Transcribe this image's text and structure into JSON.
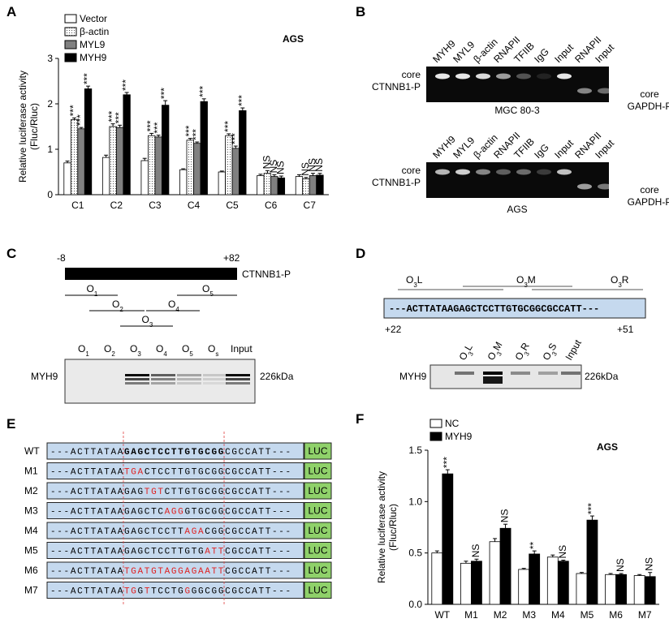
{
  "panel_labels": [
    "A",
    "B",
    "C",
    "D",
    "E",
    "F"
  ],
  "chart_data": [
    {
      "type": "bar",
      "title": "AGS",
      "ylabel": [
        "Relative luciferase activity",
        "(Fluc/Rluc)"
      ],
      "categories": [
        "C1",
        "C2",
        "C3",
        "C4",
        "C5",
        "C6",
        "C7"
      ],
      "series": [
        {
          "name": "Vector",
          "color": "#ffffff",
          "values": [
            0.7,
            0.82,
            0.75,
            0.55,
            0.5,
            0.42,
            0.4
          ],
          "errors": [
            0.04,
            0.05,
            0.05,
            0.02,
            0.02,
            0.03,
            0.04
          ]
        },
        {
          "name": "β-actin",
          "color": "#ffffff",
          "pattern": "dots",
          "values": [
            1.65,
            1.5,
            1.3,
            1.2,
            1.3,
            0.47,
            0.35
          ],
          "errors": [
            0.04,
            0.06,
            0.05,
            0.04,
            0.04,
            0.06,
            0.03
          ],
          "significance": [
            "***",
            "***",
            "***",
            "***",
            "***",
            "NS",
            "NS"
          ]
        },
        {
          "name": "MYL9",
          "color": "#808080",
          "values": [
            1.45,
            1.48,
            1.27,
            1.13,
            1.02,
            0.4,
            0.42
          ],
          "errors": [
            0.03,
            0.05,
            0.04,
            0.03,
            0.05,
            0.04,
            0.05
          ],
          "significance": [
            "***",
            "***",
            "***",
            "***",
            "***",
            "NS",
            "NS"
          ]
        },
        {
          "name": "MYH9",
          "color": "#000000",
          "values": [
            2.33,
            2.2,
            1.97,
            2.05,
            1.85,
            0.37,
            0.43
          ],
          "errors": [
            0.06,
            0.05,
            0.1,
            0.06,
            0.06,
            0.04,
            0.04
          ],
          "significance": [
            "***",
            "***",
            "***",
            "***",
            "***",
            "NS",
            "NS"
          ]
        }
      ],
      "ylim": [
        0,
        3
      ],
      "yticks": [
        0,
        1,
        2,
        3
      ]
    },
    {
      "type": "bar",
      "title": "AGS",
      "ylabel": [
        "Relative luciferase activity",
        "(Fluc/Rluc)"
      ],
      "categories": [
        "WT",
        "M1",
        "M2",
        "M3",
        "M4",
        "M5",
        "M6",
        "M7"
      ],
      "series": [
        {
          "name": "NC",
          "color": "#ffffff",
          "values": [
            0.5,
            0.4,
            0.61,
            0.34,
            0.46,
            0.3,
            0.29,
            0.28
          ],
          "errors": [
            0.02,
            0.02,
            0.03,
            0.01,
            0.02,
            0.01,
            0.01,
            0.01
          ]
        },
        {
          "name": "MYH9",
          "color": "#000000",
          "values": [
            1.27,
            0.42,
            0.74,
            0.49,
            0.42,
            0.82,
            0.29,
            0.27
          ],
          "errors": [
            0.04,
            0.02,
            0.04,
            0.03,
            0.01,
            0.04,
            0.01,
            0.04
          ],
          "significance": [
            "***",
            "NS",
            "NS",
            "**",
            "NS",
            "***",
            "NS",
            "NS"
          ]
        }
      ],
      "ylim": [
        0,
        1.5
      ],
      "yticks": [
        {
          "value": 0,
          "label": "0.0"
        },
        {
          "value": 0.5,
          "label": "0.5"
        },
        {
          "value": 1,
          "label": "1.0"
        },
        {
          "value": 1.5,
          "label": "1.5"
        }
      ]
    }
  ],
  "panel_b": {
    "gels": [
      {
        "lanes": [
          "MYH9",
          "MYL9",
          "β-actin",
          "RNAPII",
          "TFIIB",
          "IgG",
          "Input",
          "RNAPII",
          "Input"
        ],
        "left_label": [
          "core",
          "CTNNB1-P"
        ],
        "right_label": [
          "core",
          "GAPDH-P"
        ],
        "caption": "MGC 80-3"
      },
      {
        "lanes": [
          "MYH9",
          "MYL9",
          "β-actin",
          "RNAPII",
          "TFIIB",
          "IgG",
          "Input",
          "RNAPII",
          "Input"
        ],
        "left_label": [
          "core",
          "CTNNB1-P"
        ],
        "right_label": [
          "core",
          "GAPDH-P"
        ],
        "caption": "AGS"
      }
    ]
  },
  "panel_c": {
    "start": "-8",
    "end": "+82",
    "region": "CTNNB1-P",
    "oligos": [
      {
        "base": "O",
        "sub": "1"
      },
      {
        "base": "O",
        "sub": "2"
      },
      {
        "base": "O",
        "sub": "3"
      },
      {
        "base": "O",
        "sub": "4"
      },
      {
        "base": "O",
        "sub": "5"
      }
    ],
    "lanes": [
      {
        "base": "O",
        "sub": "1"
      },
      {
        "base": "O",
        "sub": "2"
      },
      {
        "base": "O",
        "sub": "3"
      },
      {
        "base": "O",
        "sub": "4"
      },
      {
        "base": "O",
        "sub": "5"
      },
      {
        "base": "O",
        "sub": "s"
      },
      {
        "base": "Input"
      }
    ],
    "protein": "MYH9",
    "size": "226kDa"
  },
  "panel_d": {
    "probes": [
      {
        "base": "O",
        "sub": "3",
        "suffix": "L"
      },
      {
        "base": "O",
        "sub": "3",
        "suffix": "M"
      },
      {
        "base": "O",
        "sub": "3",
        "suffix": "R"
      }
    ],
    "sequence": "---ACTTATAAGAGCTCCTTGTGCGGCGCCATT---",
    "start": "+22",
    "end": "+51",
    "lanes": [
      {
        "base": "O",
        "sub": "3",
        "suffix": "L"
      },
      {
        "base": "O",
        "sub": "3",
        "suffix": "M"
      },
      {
        "base": "O",
        "sub": "3",
        "suffix": "R"
      },
      {
        "base": "O",
        "sub": "3",
        "suffix": "S"
      },
      {
        "base": "Input"
      }
    ],
    "protein": "MYH9",
    "size": "226kDa"
  },
  "panel_e": {
    "reporter": "LUC",
    "rows": [
      {
        "name": "WT",
        "segments": [
          {
            "text": "---ACTTATAA"
          },
          {
            "text": "GAGCTCCTTGTGCGG",
            "bold": true
          },
          {
            "text": "CGCCATT---"
          }
        ]
      },
      {
        "name": "M1",
        "segments": [
          {
            "text": "---ACTTATAA"
          },
          {
            "text": "TGA",
            "mutated": true
          },
          {
            "text": "CTCCTTGTGCGGCGCCATT---"
          }
        ]
      },
      {
        "name": "M2",
        "segments": [
          {
            "text": "---ACTTATAAGAG"
          },
          {
            "text": "TGT",
            "mutated": true
          },
          {
            "text": "CTTGTGCGGCGCCATT---"
          }
        ]
      },
      {
        "name": "M3",
        "segments": [
          {
            "text": "---ACTTATAAGAGCTC"
          },
          {
            "text": "AGG",
            "mutated": true
          },
          {
            "text": "GTGCGGCGCCATT---"
          }
        ]
      },
      {
        "name": "M4",
        "segments": [
          {
            "text": "---ACTTATAAGAGCTCCTT"
          },
          {
            "text": "AGA",
            "mutated": true
          },
          {
            "text": "CGGCGCCATT---"
          }
        ]
      },
      {
        "name": "M5",
        "segments": [
          {
            "text": "---ACTTATAAGAGCTCCTTGTG"
          },
          {
            "text": "ATT",
            "mutated": true
          },
          {
            "text": "CGCCATT---"
          }
        ]
      },
      {
        "name": "M6",
        "segments": [
          {
            "text": "---ACTTATAA"
          },
          {
            "text": "TGATGTAGGAGAATT",
            "mutated": true
          },
          {
            "text": "CGCCATT---"
          }
        ]
      },
      {
        "name": "M7",
        "segments": [
          {
            "text": "---ACTTATAA"
          },
          {
            "text": "TG",
            "mutated": true
          },
          {
            "text": "G"
          },
          {
            "text": "T",
            "mutated": true
          },
          {
            "text": "TCCTG"
          },
          {
            "text": "G",
            "mutated": true
          },
          {
            "text": "GGCGGCGCCATT---"
          }
        ]
      }
    ]
  }
}
